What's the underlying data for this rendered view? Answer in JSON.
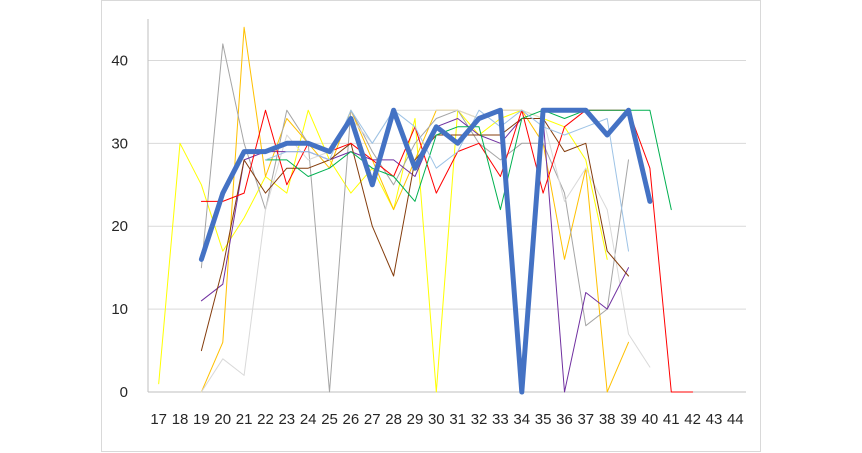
{
  "chart_data": {
    "type": "line",
    "title": "",
    "xlabel": "",
    "ylabel": "",
    "x": [
      17,
      18,
      19,
      20,
      21,
      22,
      23,
      24,
      25,
      26,
      27,
      28,
      29,
      30,
      31,
      32,
      33,
      34,
      35,
      36,
      37,
      38,
      39,
      40,
      41,
      42,
      43,
      44
    ],
    "x_tick_labels": [
      "17",
      "18",
      "19",
      "20",
      "21",
      "22",
      "23",
      "24",
      "25",
      "26",
      "27",
      "28",
      "29",
      "30",
      "31",
      "32",
      "33",
      "34",
      "35",
      "36",
      "37",
      "38",
      "39",
      "40",
      "41",
      "42",
      "43",
      "44"
    ],
    "ylim": [
      0,
      45
    ],
    "y_ticks": [
      0,
      10,
      20,
      30,
      40
    ],
    "y_tick_labels": [
      "0",
      "10",
      "20",
      "30",
      "40"
    ],
    "grid": "horizontal",
    "legend": "none",
    "series": [
      {
        "color": "#ffff00",
        "width": 1,
        "values": [
          1,
          30,
          25,
          17,
          21,
          26,
          24,
          34,
          28,
          24,
          27,
          22,
          33,
          0,
          34,
          31,
          33,
          34,
          33,
          32,
          28,
          16,
          null,
          null,
          null,
          null,
          null,
          null
        ]
      },
      {
        "color": "#ffc000",
        "width": 1,
        "values": [
          null,
          null,
          0,
          6,
          44,
          26,
          33,
          30,
          27,
          34,
          28,
          22,
          28,
          34,
          34,
          33,
          34,
          34,
          30,
          16,
          27,
          0,
          6,
          null,
          null,
          null,
          null,
          null
        ]
      },
      {
        "color": "#a5a5a5",
        "width": 1,
        "values": [
          null,
          null,
          15,
          42,
          30,
          22,
          34,
          30,
          0,
          34,
          29,
          25,
          30,
          33,
          34,
          30,
          28,
          30,
          30,
          24,
          8,
          10,
          28,
          null,
          null,
          null,
          null,
          null
        ]
      },
      {
        "color": "#d9d9d9",
        "width": 1,
        "values": [
          null,
          null,
          0,
          4,
          2,
          22,
          31,
          28,
          29,
          33,
          30,
          34,
          34,
          34,
          34,
          33,
          34,
          34,
          33,
          23,
          27,
          22,
          7,
          3,
          null,
          null,
          null,
          null
        ]
      },
      {
        "color": "#7030a0",
        "width": 1,
        "values": [
          null,
          null,
          11,
          13,
          28,
          29,
          29,
          29,
          28,
          29,
          28,
          28,
          26,
          32,
          33,
          31,
          30,
          33,
          33,
          0,
          12,
          10,
          15,
          null,
          null,
          null,
          null,
          null
        ]
      },
      {
        "color": "#843c0c",
        "width": 1,
        "values": [
          null,
          null,
          5,
          15,
          28,
          24,
          27,
          27,
          28,
          30,
          20,
          14,
          28,
          31,
          31,
          31,
          31,
          33,
          33,
          29,
          30,
          17,
          14,
          null,
          null,
          null,
          null,
          null
        ]
      },
      {
        "color": "#ff0000",
        "width": 1,
        "values": [
          null,
          null,
          23,
          23,
          24,
          34,
          25,
          30,
          29,
          30,
          28,
          26,
          32,
          24,
          29,
          30,
          26,
          34,
          24,
          32,
          34,
          34,
          34,
          27,
          0,
          0,
          null,
          null
        ]
      },
      {
        "color": "#00b050",
        "width": 1,
        "values": [
          null,
          null,
          null,
          null,
          null,
          28,
          28,
          26,
          27,
          29,
          27,
          26,
          23,
          31,
          32,
          32,
          22,
          33,
          34,
          33,
          34,
          34,
          34,
          34,
          22,
          null,
          null,
          null
        ]
      },
      {
        "color": "#9dc3e6",
        "width": 1,
        "values": [
          null,
          null,
          null,
          null,
          null,
          28,
          29,
          29,
          28,
          34,
          30,
          34,
          32,
          27,
          29,
          34,
          32,
          34,
          32,
          31,
          32,
          33,
          17,
          null,
          null,
          null,
          null,
          null
        ]
      },
      {
        "color": "#4472c4",
        "width": 5,
        "values": [
          null,
          null,
          16,
          24,
          29,
          29,
          30,
          30,
          29,
          33,
          25,
          34,
          27,
          32,
          30,
          33,
          34,
          0,
          34,
          34,
          34,
          31,
          34,
          23,
          null,
          null,
          null,
          null
        ]
      }
    ]
  }
}
